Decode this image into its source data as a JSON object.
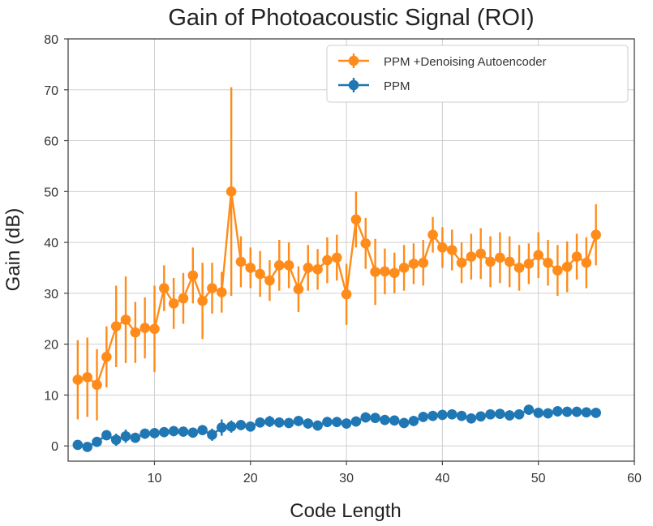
{
  "chart_data": {
    "type": "line",
    "title": "Gain of Photoacoustic Signal (ROI)",
    "xlabel": "Code Length",
    "ylabel": "Gain (dB)",
    "xlim": [
      1,
      60
    ],
    "ylim": [
      -3,
      80
    ],
    "x_ticks": [
      10,
      20,
      30,
      40,
      50,
      60
    ],
    "y_ticks": [
      0,
      10,
      20,
      30,
      40,
      50,
      60,
      70,
      80
    ],
    "grid": true,
    "legend_position": "top-right",
    "x": [
      2,
      3,
      4,
      5,
      6,
      7,
      8,
      9,
      10,
      11,
      12,
      13,
      14,
      15,
      16,
      17,
      18,
      19,
      20,
      21,
      22,
      23,
      24,
      25,
      26,
      27,
      28,
      29,
      30,
      31,
      32,
      33,
      34,
      35,
      36,
      37,
      38,
      39,
      40,
      41,
      42,
      43,
      44,
      45,
      46,
      47,
      48,
      49,
      50,
      51,
      52,
      53,
      54,
      55,
      56
    ],
    "series": [
      {
        "name": "PPM +Denoising Autoencoder",
        "color": "#ff8c1a",
        "values": [
          13,
          13.5,
          12,
          17.5,
          23.5,
          24.8,
          22.3,
          23.2,
          23,
          31,
          28,
          29,
          33.5,
          28.5,
          31,
          30.2,
          50,
          36.2,
          35,
          33.8,
          32.5,
          35.5,
          35.5,
          30.8,
          35,
          34.7,
          36.5,
          37,
          29.8,
          44.5,
          39.8,
          34.2,
          34.3,
          34,
          35,
          35.8,
          36,
          41.5,
          39,
          38.5,
          36,
          37.2,
          37.8,
          36.2,
          37,
          36.2,
          35,
          35.8,
          37.5,
          36,
          34.5,
          35.2,
          37.2,
          36,
          41.5
        ],
        "errors": [
          7.8,
          7.8,
          7,
          6,
          8,
          8.5,
          6,
          6,
          8.5,
          4.5,
          5,
          5,
          5.5,
          7.5,
          5,
          4,
          20.5,
          5,
          4,
          4.5,
          4,
          5,
          4.5,
          4.5,
          4.5,
          4,
          4.5,
          4.5,
          6,
          5.5,
          5,
          6.5,
          4.5,
          4,
          4.5,
          4,
          4.5,
          3.5,
          4,
          4,
          4,
          4.5,
          5,
          5,
          5,
          5,
          4.5,
          4,
          4.5,
          4.5,
          5,
          5,
          4.5,
          5,
          6
        ]
      },
      {
        "name": "PPM",
        "color": "#1f77b4",
        "values": [
          0.2,
          -0.2,
          0.8,
          2.1,
          1.2,
          1.9,
          1.6,
          2.4,
          2.5,
          2.7,
          2.9,
          2.8,
          2.6,
          3.1,
          2.2,
          3.6,
          3.8,
          4.1,
          3.8,
          4.6,
          4.8,
          4.6,
          4.5,
          4.9,
          4.4,
          4.0,
          4.7,
          4.7,
          4.4,
          4.8,
          5.6,
          5.5,
          5.1,
          5.0,
          4.5,
          4.9,
          5.7,
          5.9,
          6.1,
          6.2,
          5.9,
          5.4,
          5.8,
          6.2,
          6.3,
          6.0,
          6.2,
          7.1,
          6.5,
          6.4,
          6.8,
          6.7,
          6.7,
          6.6,
          6.5
        ],
        "errors": [
          0.9,
          0.9,
          1,
          1,
          1.2,
          1.3,
          1,
          1,
          1,
          1,
          1,
          1,
          1,
          1,
          1.2,
          1.6,
          1.2,
          1,
          1,
          1,
          1.1,
          1,
          1,
          1,
          1,
          1,
          1,
          1,
          1,
          1,
          1,
          1,
          1,
          1,
          1,
          1,
          1,
          1,
          1,
          1,
          1,
          1,
          1,
          1,
          1,
          1,
          1,
          1,
          1,
          1,
          1,
          1,
          1,
          1,
          1
        ]
      }
    ]
  }
}
